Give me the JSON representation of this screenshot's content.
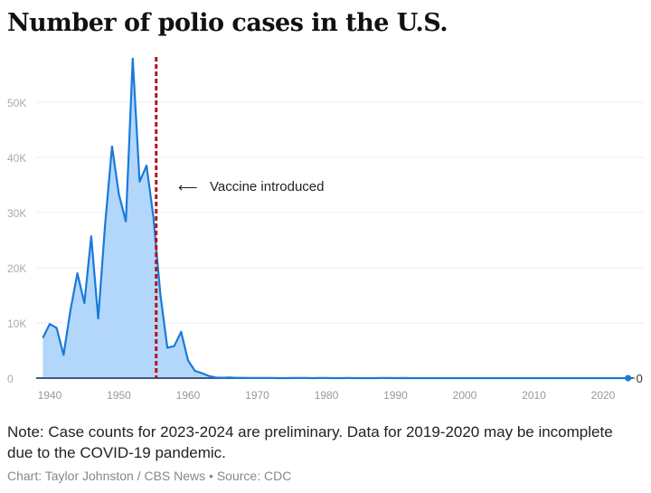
{
  "chart_data": {
    "type": "area",
    "title": "Number of polio cases in the U.S.",
    "xlabel": "",
    "ylabel": "",
    "xlim": [
      1939,
      2024
    ],
    "ylim": [
      0,
      58000
    ],
    "grid": true,
    "x_ticks": [
      "1940",
      "1950",
      "1960",
      "1970",
      "1980",
      "1990",
      "2000",
      "2010",
      "2020"
    ],
    "y_ticks": [
      {
        "value": 0,
        "label": "0"
      },
      {
        "value": 10000,
        "label": "10K"
      },
      {
        "value": 20000,
        "label": "20K"
      },
      {
        "value": 30000,
        "label": "30K"
      },
      {
        "value": 40000,
        "label": "40K"
      },
      {
        "value": 50000,
        "label": "50K"
      }
    ],
    "x": [
      1939,
      1940,
      1941,
      1942,
      1943,
      1944,
      1945,
      1946,
      1947,
      1948,
      1949,
      1950,
      1951,
      1952,
      1953,
      1954,
      1955,
      1956,
      1957,
      1958,
      1959,
      1960,
      1961,
      1962,
      1963,
      1964,
      1965,
      1966,
      1967,
      1968,
      1969,
      1970,
      1971,
      1972,
      1973,
      1974,
      1975,
      1976,
      1977,
      1978,
      1979,
      1980,
      1981,
      1982,
      1983,
      1984,
      1985,
      1986,
      1987,
      1988,
      1989,
      1990,
      1991,
      1992,
      1993,
      1994,
      1995,
      1996,
      1997,
      1998,
      1999,
      2000,
      2001,
      2002,
      2003,
      2004,
      2005,
      2006,
      2007,
      2008,
      2009,
      2010,
      2011,
      2012,
      2013,
      2014,
      2015,
      2016,
      2017,
      2018,
      2019,
      2020,
      2021,
      2022,
      2023,
      2024
    ],
    "values": [
      7300,
      9800,
      9100,
      4200,
      12400,
      19000,
      13600,
      25700,
      10800,
      27700,
      42000,
      33300,
      28400,
      57900,
      35600,
      38500,
      29000,
      15100,
      5500,
      5800,
      8400,
      3200,
      1300,
      900,
      400,
      120,
      72,
      113,
      41,
      53,
      20,
      33,
      21,
      31,
      8,
      7,
      13,
      10,
      19,
      8,
      22,
      9,
      6,
      8,
      13,
      8,
      7,
      2,
      6,
      9,
      11,
      6,
      10,
      6,
      4,
      8,
      7,
      5,
      3,
      1,
      0,
      0,
      0,
      0,
      0,
      0,
      1,
      0,
      0,
      0,
      0,
      0,
      0,
      0,
      0,
      0,
      0,
      0,
      0,
      0,
      0,
      0,
      0,
      1,
      0,
      0
    ],
    "series_color": "#1a7ad9",
    "fill_color": "#b3d7fb",
    "end_label": "0",
    "annotation": {
      "year": 1955,
      "text": "Vaccine introduced",
      "arrow": "⟵",
      "color": "#b3131b"
    }
  },
  "note": "Note: Case counts for 2023-2024 are preliminary. Data for 2019-2020 may be incomplete due to the COVID-19 pandemic.",
  "credit": "Chart: Taylor Johnston / CBS News • Source: CDC"
}
